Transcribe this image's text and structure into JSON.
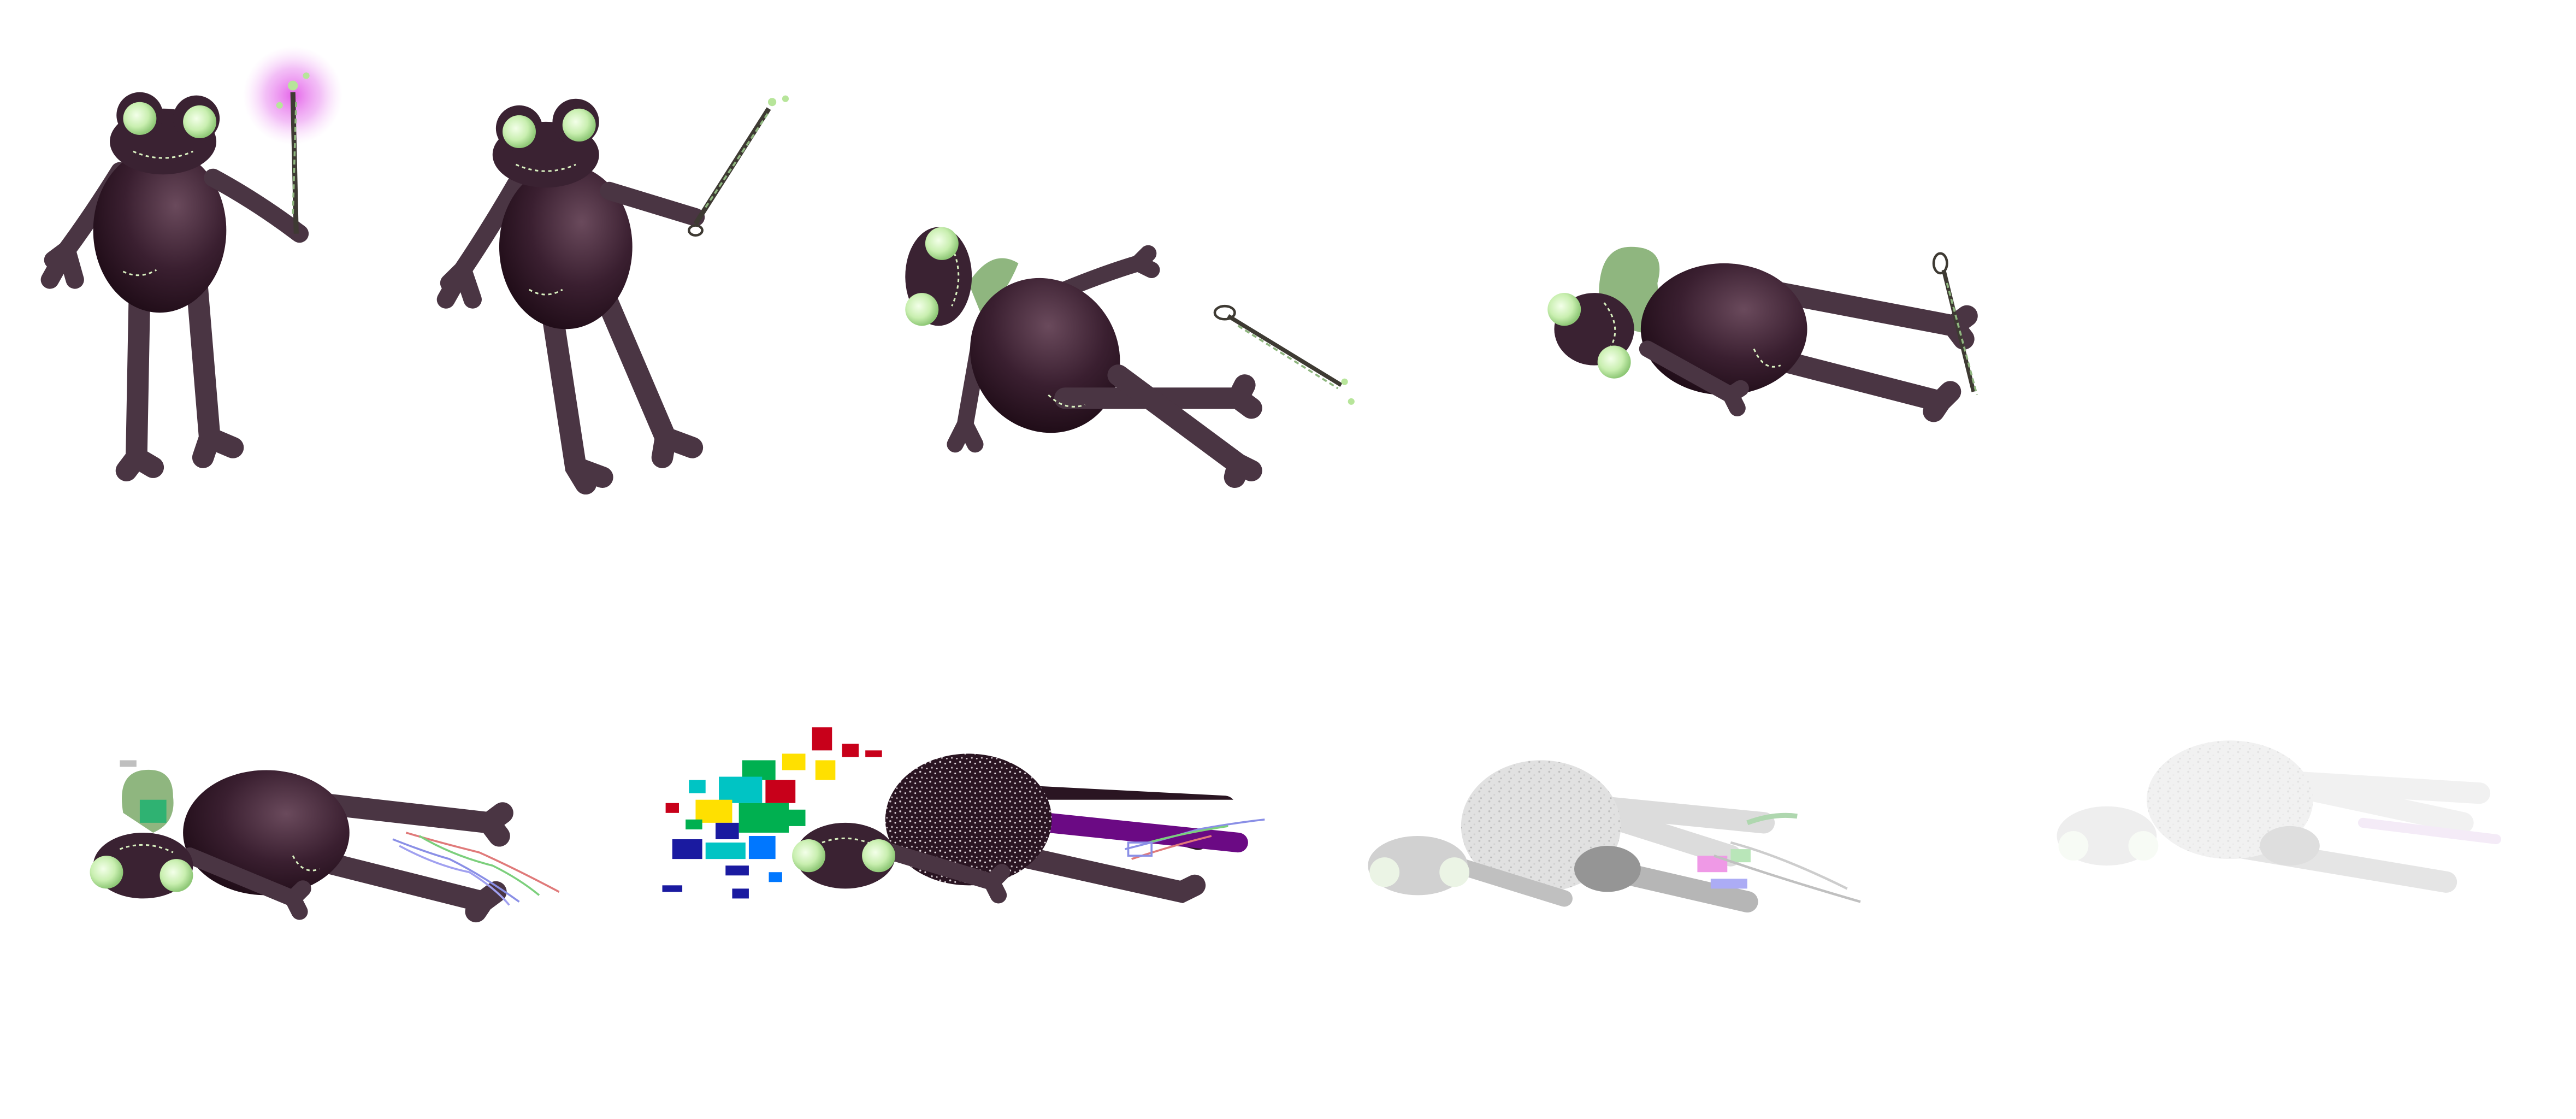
{
  "sprite_sheet": {
    "columns": 4,
    "rows": 2,
    "frames": [
      {
        "id": "idle-casting",
        "wand_glow": true
      },
      {
        "id": "wand-extended"
      },
      {
        "id": "knocked-back"
      },
      {
        "id": "lying-cape-up"
      },
      {
        "id": "fallen-flicker"
      },
      {
        "id": "glitch-dissolve"
      },
      {
        "id": "fade-out-1",
        "opacity": 0.62
      },
      {
        "id": "fade-out-2",
        "opacity": 0.28
      }
    ]
  },
  "palette": {
    "body": "#2b1220",
    "body_highlight": "#6a4a5c",
    "limb": "#4a3543",
    "eye_outer": "#e9ffd9",
    "eye_inner": "#9fd389",
    "cape": "#8fb67f",
    "stitch": "#d8f0c0",
    "wand": "#3e3a33",
    "spark": "#b7e59a",
    "magic_glow": "#e45ce8",
    "glitch_colors": [
      "#c8001a",
      "#ffe000",
      "#00b050",
      "#0077ff",
      "#00c4c4",
      "#1a1aa0",
      "#ff00c8",
      "#6b0a84"
    ]
  }
}
